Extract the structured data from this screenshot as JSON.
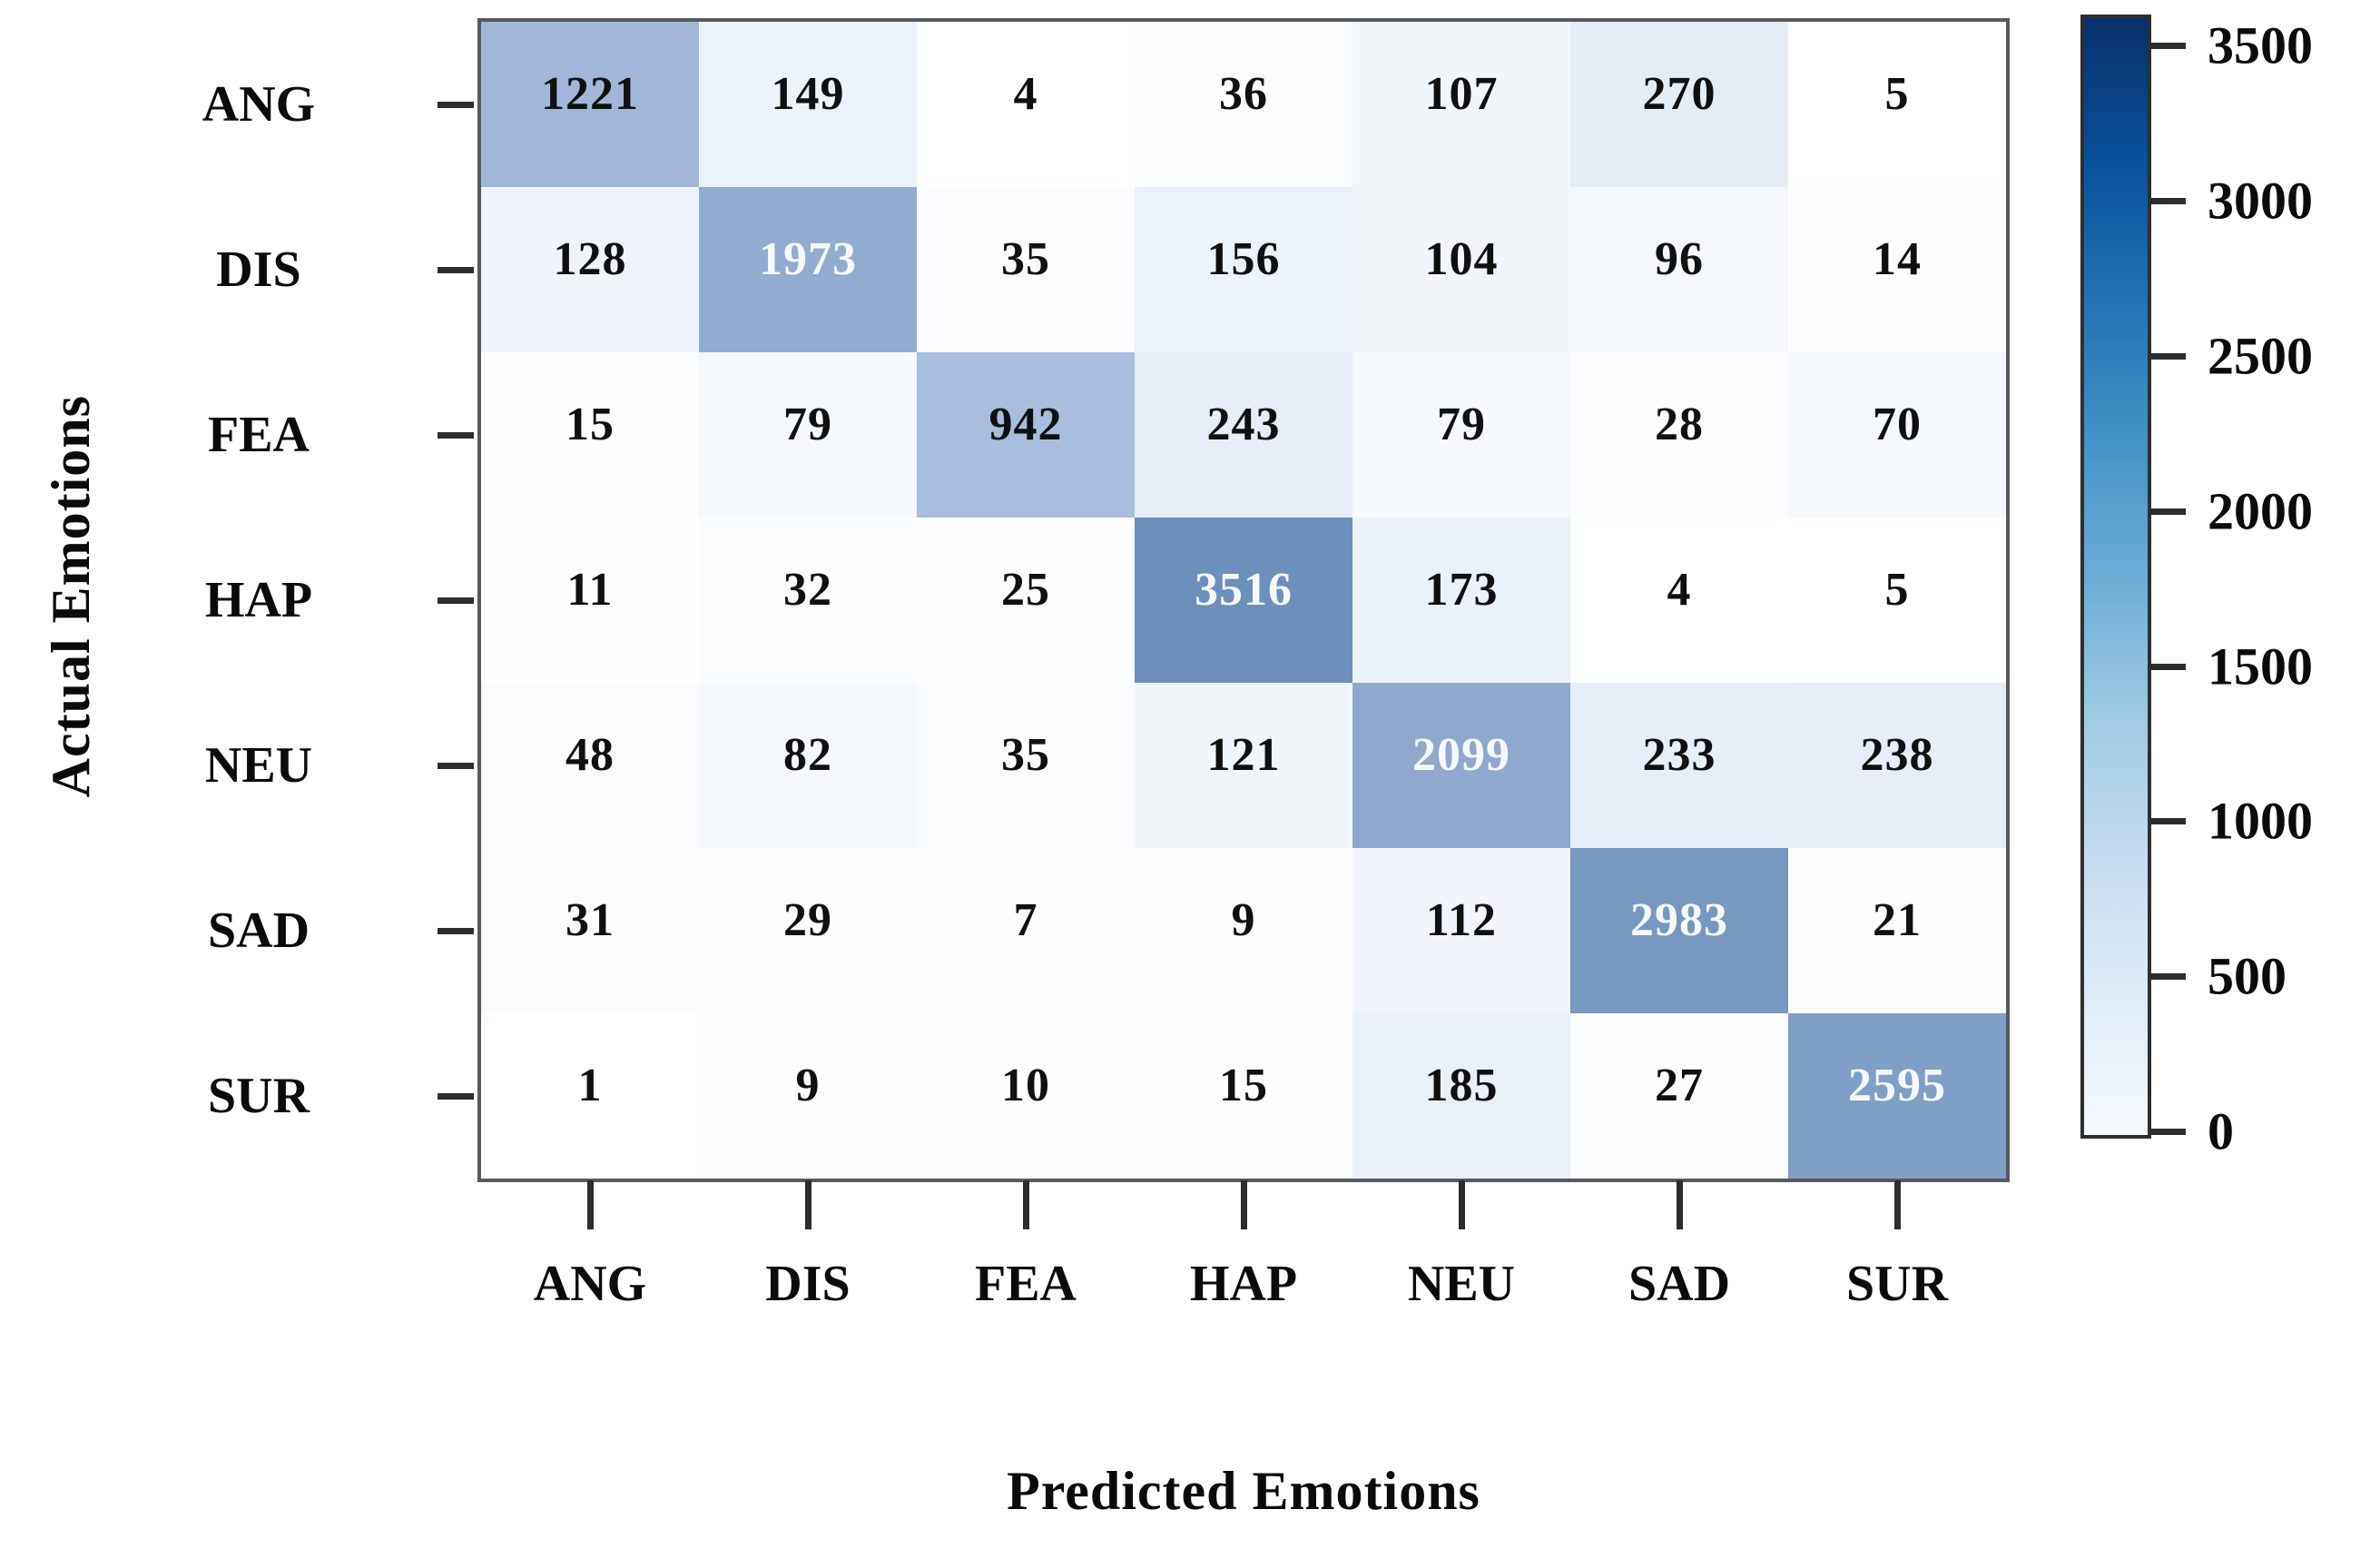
{
  "figure": {
    "background": "#ffffff"
  },
  "chart_data": {
    "type": "heatmap",
    "title": "",
    "xlabel": "Predicted Emotions",
    "ylabel": "Actual Emotions",
    "x_categories": [
      "ANG",
      "DIS",
      "FEA",
      "HAP",
      "NEU",
      "SAD",
      "SUR"
    ],
    "y_categories": [
      "ANG",
      "DIS",
      "FEA",
      "HAP",
      "NEU",
      "SAD",
      "SUR"
    ],
    "matrix": [
      [
        1221,
        149,
        4,
        36,
        107,
        270,
        5
      ],
      [
        128,
        1973,
        35,
        156,
        104,
        96,
        14
      ],
      [
        15,
        79,
        942,
        243,
        79,
        28,
        70
      ],
      [
        11,
        32,
        25,
        3516,
        173,
        4,
        5
      ],
      [
        48,
        82,
        35,
        121,
        2099,
        233,
        238
      ],
      [
        31,
        29,
        7,
        9,
        112,
        2983,
        21
      ],
      [
        1,
        9,
        10,
        15,
        185,
        27,
        2595
      ]
    ],
    "value_text": {
      "dark_color": "#101010",
      "light_color": "#f6f8fb",
      "light_threshold": 1500
    },
    "cell_color_anchors": [
      [
        0,
        "#ffffff"
      ],
      [
        60,
        "#f7fafd"
      ],
      [
        150,
        "#ecf2f9"
      ],
      [
        300,
        "#e2eaf5"
      ],
      [
        600,
        "#cfdcee"
      ],
      [
        942,
        "#a9bedd"
      ],
      [
        1221,
        "#a2b6d8"
      ],
      [
        1700,
        "#99b1d4"
      ],
      [
        2100,
        "#90a8cd"
      ],
      [
        2600,
        "#809fc6"
      ],
      [
        3000,
        "#7697c0"
      ],
      [
        3600,
        "#6a8ebb"
      ]
    ],
    "colorbar": {
      "min": 0,
      "max": 3600,
      "ticks": [
        3500,
        3000,
        2500,
        2000,
        1500,
        1000,
        500,
        0
      ],
      "gradient_stops": [
        "#f7fbff",
        "#deebf7",
        "#c6dbef",
        "#9ecae1",
        "#6baed6",
        "#4292c6",
        "#2171b5",
        "#08519c",
        "#08306b"
      ],
      "position": "right"
    },
    "grid_lines": false,
    "legend_position": "right"
  }
}
